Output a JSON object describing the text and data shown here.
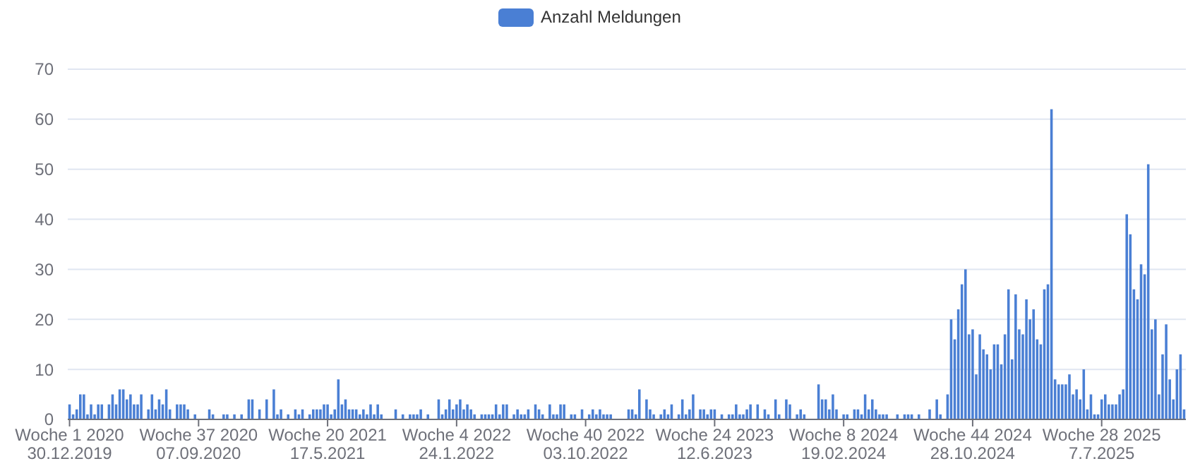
{
  "chart_data": {
    "type": "bar",
    "ylim": [
      0,
      70
    ],
    "yticks": [
      0,
      10,
      20,
      30,
      40,
      50,
      60,
      70
    ],
    "grid": "y",
    "legend": "top",
    "categories": [
      "Woche 1 2020\n30.12.2019",
      null,
      null,
      null,
      null,
      null,
      null,
      null,
      null,
      null,
      null,
      null,
      null,
      null,
      null,
      null,
      null,
      null,
      null,
      null,
      null,
      null,
      null,
      null,
      null,
      null,
      null,
      null,
      null,
      null,
      null,
      null,
      null,
      null,
      null,
      null,
      "Woche 37 2020\n07.09.2020",
      null,
      null,
      null,
      null,
      null,
      null,
      null,
      null,
      null,
      null,
      null,
      null,
      null,
      null,
      null,
      null,
      null,
      null,
      null,
      null,
      null,
      null,
      null,
      null,
      null,
      null,
      null,
      null,
      null,
      null,
      null,
      null,
      null,
      null,
      null,
      "Woche 20 2021\n17.5.2021",
      null,
      null,
      null,
      null,
      null,
      null,
      null,
      null,
      null,
      null,
      null,
      null,
      null,
      null,
      null,
      null,
      null,
      null,
      null,
      null,
      null,
      null,
      null,
      null,
      null,
      null,
      null,
      null,
      null,
      null,
      null,
      null,
      null,
      null,
      null,
      "Woche 4 2022\n24.1.2022",
      null,
      null,
      null,
      null,
      null,
      null,
      null,
      null,
      null,
      null,
      null,
      null,
      null,
      null,
      null,
      null,
      null,
      null,
      null,
      null,
      null,
      null,
      null,
      null,
      null,
      null,
      null,
      null,
      null,
      null,
      null,
      null,
      null,
      null,
      null,
      "Woche 40 2022\n03.10.2022",
      null,
      null,
      null,
      null,
      null,
      null,
      null,
      null,
      null,
      null,
      null,
      null,
      null,
      null,
      null,
      null,
      null,
      null,
      null,
      null,
      null,
      null,
      null,
      null,
      null,
      null,
      null,
      null,
      null,
      null,
      null,
      null,
      null,
      null,
      null,
      "Woche 24 2023\n12.6.2023",
      null,
      null,
      null,
      null,
      null,
      null,
      null,
      null,
      null,
      null,
      null,
      null,
      null,
      null,
      null,
      null,
      null,
      null,
      null,
      null,
      null,
      null,
      null,
      null,
      null,
      null,
      null,
      null,
      null,
      null,
      null,
      null,
      null,
      null,
      null,
      "Woche 8 2024\n19.02.2024",
      null,
      null,
      null,
      null,
      null,
      null,
      null,
      null,
      null,
      null,
      null,
      null,
      null,
      null,
      null,
      null,
      null,
      null,
      null,
      null,
      null,
      null,
      null,
      null,
      null,
      null,
      null,
      null,
      null,
      null,
      null,
      null,
      null,
      null,
      null,
      "Woche 44 2024\n28.10.2024",
      null,
      null,
      null,
      null,
      null,
      null,
      null,
      null,
      null,
      null,
      null,
      null,
      null,
      null,
      null,
      null,
      null,
      null,
      null,
      null,
      null,
      null,
      null,
      null,
      null,
      null,
      null,
      null,
      null,
      null,
      null,
      null,
      null,
      null,
      null,
      "Woche 28 2025\n7.7.2025",
      null,
      null,
      null,
      null,
      null,
      null,
      null,
      null,
      null,
      null,
      null,
      null,
      null,
      null,
      null,
      null,
      null,
      null,
      null,
      null,
      null,
      null,
      null
    ],
    "series": [
      {
        "name": "Anzahl Meldungen",
        "color": "#4a7fd4",
        "values": [
          3,
          1,
          2,
          5,
          5,
          1,
          3,
          1,
          3,
          3,
          0,
          3,
          5,
          3,
          6,
          6,
          4,
          5,
          3,
          3,
          5,
          0,
          2,
          5,
          2,
          4,
          3,
          6,
          2,
          0,
          3,
          3,
          3,
          2,
          0,
          1,
          0,
          0,
          0,
          2,
          1,
          0,
          0,
          1,
          1,
          0,
          1,
          0,
          1,
          0,
          4,
          4,
          0,
          2,
          0,
          4,
          0,
          6,
          1,
          2,
          0,
          1,
          0,
          2,
          1,
          2,
          0,
          1,
          2,
          2,
          2,
          3,
          3,
          1,
          2,
          8,
          3,
          4,
          2,
          2,
          2,
          1,
          2,
          1,
          3,
          1,
          3,
          1,
          0,
          0,
          0,
          2,
          0,
          1,
          0,
          1,
          1,
          1,
          2,
          0,
          1,
          0,
          0,
          4,
          1,
          2,
          4,
          2,
          3,
          4,
          2,
          3,
          2,
          1,
          0,
          1,
          1,
          1,
          1,
          3,
          1,
          3,
          3,
          0,
          1,
          2,
          1,
          1,
          2,
          0,
          3,
          2,
          1,
          0,
          3,
          1,
          1,
          3,
          3,
          0,
          1,
          1,
          0,
          2,
          0,
          1,
          2,
          1,
          2,
          1,
          1,
          1,
          0,
          0,
          0,
          0,
          2,
          2,
          1,
          6,
          0,
          4,
          2,
          1,
          0,
          1,
          2,
          1,
          3,
          0,
          1,
          4,
          1,
          2,
          5,
          0,
          2,
          2,
          1,
          2,
          2,
          0,
          1,
          0,
          1,
          1,
          3,
          1,
          1,
          2,
          3,
          0,
          3,
          0,
          2,
          1,
          0,
          4,
          1,
          0,
          4,
          3,
          0,
          1,
          2,
          1,
          0,
          0,
          0,
          7,
          4,
          4,
          2,
          5,
          2,
          0,
          1,
          1,
          0,
          2,
          2,
          1,
          5,
          2,
          4,
          2,
          1,
          1,
          1,
          0,
          0,
          1,
          0,
          1,
          1,
          1,
          0,
          1,
          0,
          0,
          2,
          0,
          4,
          1,
          0,
          5,
          20,
          16,
          22,
          27,
          30,
          17,
          18,
          9,
          17,
          14,
          13,
          10,
          15,
          15,
          11,
          17,
          26,
          12,
          25,
          18,
          17,
          24,
          20,
          22,
          16,
          15,
          26,
          27,
          62,
          8,
          7,
          7,
          7,
          9,
          5,
          6,
          4,
          10,
          2,
          5,
          1,
          1,
          4,
          5,
          3,
          3,
          3,
          5,
          6,
          41,
          37,
          26,
          24,
          31,
          29,
          51,
          18,
          20,
          5,
          13,
          19,
          8,
          4,
          10,
          13,
          2
        ]
      }
    ]
  }
}
